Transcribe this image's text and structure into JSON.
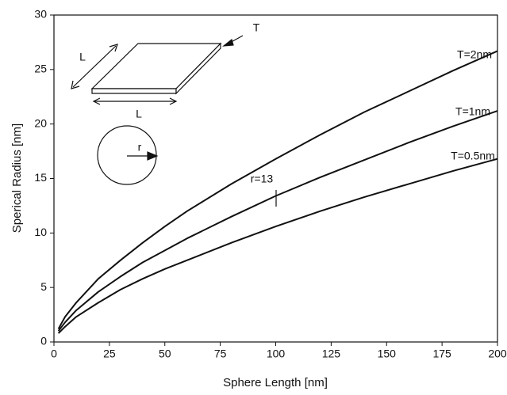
{
  "chart_data": {
    "type": "line",
    "x_label": "Sphere Length [nm]",
    "y_label": "Sperical Radius [nm]",
    "x": [
      2,
      5,
      10,
      20,
      30,
      40,
      50,
      60,
      80,
      100,
      120,
      140,
      160,
      180,
      200
    ],
    "series": [
      {
        "name": "T=2nm",
        "color": "#111111",
        "values": [
          1.2,
          2.3,
          3.6,
          5.8,
          7.5,
          9.1,
          10.6,
          12.0,
          14.5,
          16.8,
          19.0,
          21.1,
          23.0,
          24.9,
          26.7
        ]
      },
      {
        "name": "T=1nm",
        "color": "#111111",
        "values": [
          1.0,
          1.8,
          2.9,
          4.6,
          6.0,
          7.3,
          8.4,
          9.5,
          11.5,
          13.4,
          15.1,
          16.7,
          18.3,
          19.8,
          21.2
        ]
      },
      {
        "name": "T=0.5nm",
        "color": "#111111",
        "values": [
          0.8,
          1.4,
          2.3,
          3.6,
          4.8,
          5.8,
          6.7,
          7.5,
          9.1,
          10.6,
          12.0,
          13.3,
          14.5,
          15.7,
          16.8
        ]
      }
    ],
    "xlim": [
      0,
      200
    ],
    "xticks": [
      0,
      25,
      50,
      75,
      100,
      125,
      150,
      175,
      200
    ],
    "ylim": [
      0,
      30
    ],
    "yticks": [
      0,
      5,
      10,
      15,
      20,
      25,
      30
    ],
    "annotations": [
      "r=13"
    ],
    "inset_labels": [
      "L",
      "L",
      "T",
      "r"
    ]
  }
}
